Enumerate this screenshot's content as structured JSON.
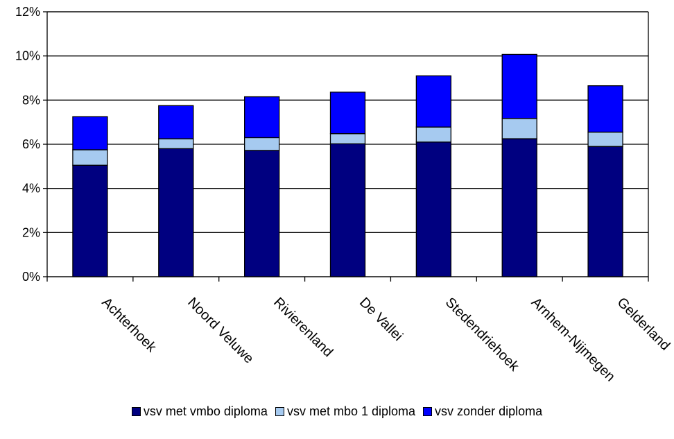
{
  "chart_data": {
    "type": "bar",
    "stacked": true,
    "categories": [
      "Achterhoek",
      "Noord Veluwe",
      "Rivierenland",
      "De Vallei",
      "Stedendriehoek",
      "Arnhem-Nijmegen",
      "Gelderland"
    ],
    "series": [
      {
        "name": "vsv met vmbo diploma",
        "color": "#000080",
        "values": [
          5.05,
          5.8,
          5.72,
          6.02,
          6.1,
          6.25,
          5.9
        ]
      },
      {
        "name": "vsv met mbo 1 diploma",
        "color": "#a6caf0",
        "values": [
          0.7,
          0.45,
          0.58,
          0.46,
          0.68,
          0.92,
          0.65
        ]
      },
      {
        "name": "vsv zonder diploma",
        "color": "#0000ff",
        "values": [
          1.5,
          1.5,
          1.85,
          1.88,
          2.32,
          2.9,
          2.1
        ]
      }
    ],
    "y_ticks": [
      "0%",
      "2%",
      "4%",
      "6%",
      "8%",
      "10%",
      "12%"
    ],
    "ylim": [
      0,
      12
    ],
    "grid": true,
    "legend_position": "bottom"
  }
}
